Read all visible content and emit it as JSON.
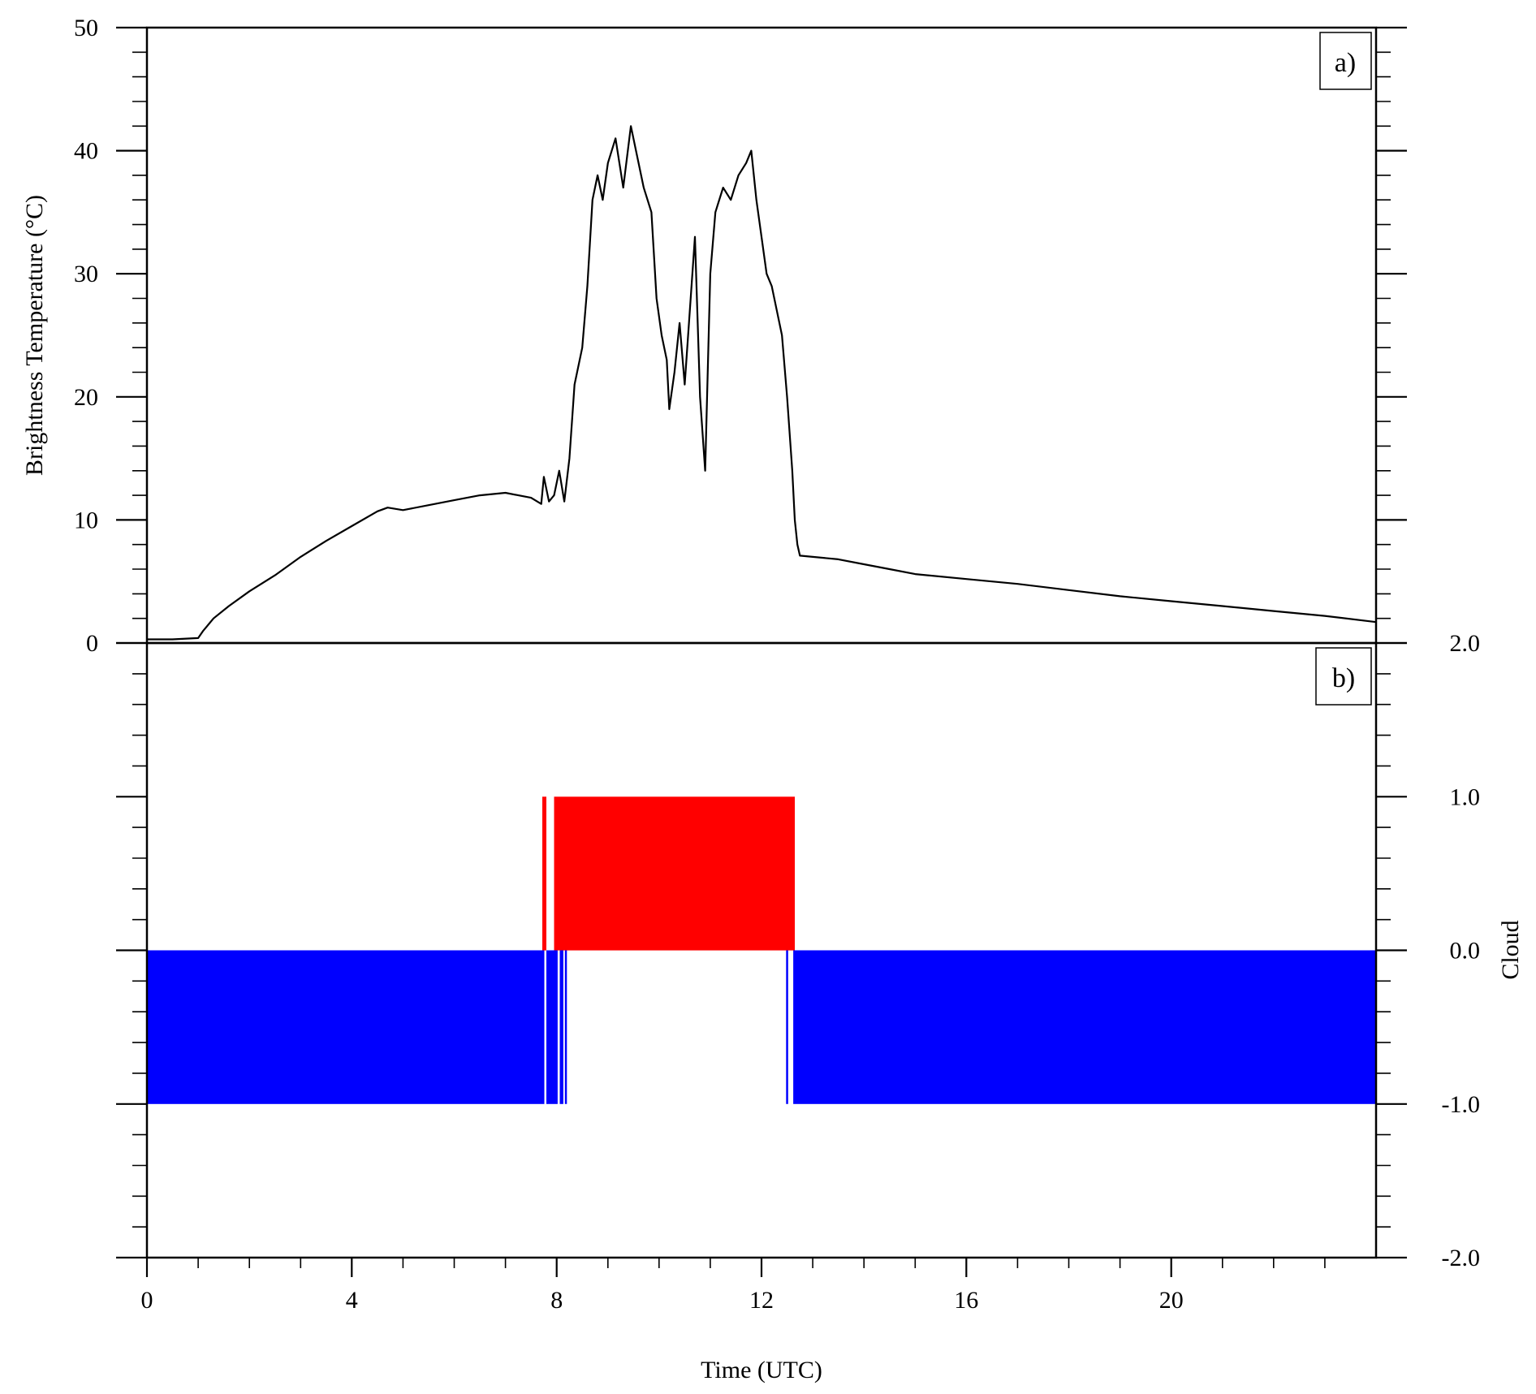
{
  "chart_data": [
    {
      "panel_label": "a)",
      "type": "line",
      "xlabel": "",
      "ylabel": "Brightness Temperature (°C)",
      "xlim": [
        0,
        24
      ],
      "ylim": [
        0,
        50
      ],
      "y_ticks": [
        "0",
        "10",
        "20",
        "30",
        "40",
        "50"
      ],
      "line_color": "#000000",
      "series": [
        {
          "name": "",
          "x": [
            0,
            0.5,
            1.0,
            1.1,
            1.3,
            1.6,
            2.0,
            2.5,
            3.0,
            3.5,
            4.0,
            4.5,
            4.7,
            5.0,
            5.5,
            6.0,
            6.5,
            7.0,
            7.5,
            7.7,
            7.75,
            7.85,
            7.95,
            8.05,
            8.15,
            8.25,
            8.35,
            8.5,
            8.6,
            8.7,
            8.8,
            8.9,
            9.0,
            9.15,
            9.3,
            9.45,
            9.55,
            9.7,
            9.85,
            9.95,
            10.05,
            10.15,
            10.2,
            10.3,
            10.4,
            10.5,
            10.6,
            10.7,
            10.8,
            10.9,
            11.0,
            11.1,
            11.25,
            11.4,
            11.55,
            11.7,
            11.8,
            11.9,
            12.0,
            12.1,
            12.2,
            12.3,
            12.4,
            12.5,
            12.6,
            12.65,
            12.7,
            12.75,
            13.0,
            13.5,
            14.0,
            14.5,
            15.0,
            16.0,
            17.0,
            18.0,
            19.0,
            20.0,
            21.0,
            22.0,
            23.0,
            24.0
          ],
          "values": [
            0.3,
            0.3,
            0.4,
            1.0,
            2.0,
            3.0,
            4.2,
            5.5,
            7.0,
            8.3,
            9.5,
            10.7,
            11.0,
            10.8,
            11.2,
            11.6,
            12.0,
            12.2,
            11.8,
            11.3,
            13.5,
            11.5,
            12.0,
            14.0,
            11.5,
            15.0,
            21.0,
            24.0,
            29.0,
            36.0,
            38.0,
            36.0,
            39.0,
            41.0,
            37.0,
            42.0,
            40.0,
            37.0,
            35.0,
            28.0,
            25.0,
            23.0,
            19.0,
            22.0,
            26.0,
            21.0,
            27.0,
            33.0,
            20.0,
            14.0,
            30.0,
            35.0,
            37.0,
            36.0,
            38.0,
            39.0,
            40.0,
            36.0,
            33.0,
            30.0,
            29.0,
            27.0,
            25.0,
            20.0,
            14.0,
            10.0,
            8.0,
            7.1,
            7.0,
            6.8,
            6.4,
            6.0,
            5.6,
            5.2,
            4.8,
            4.3,
            3.8,
            3.4,
            3.0,
            2.6,
            2.2,
            1.7
          ]
        }
      ]
    },
    {
      "panel_label": "b)",
      "type": "bar",
      "xlabel": "Time (UTC)",
      "ylabel": "Cloud",
      "xlim": [
        0,
        24
      ],
      "ylim": [
        -2.0,
        2.0
      ],
      "x_ticks": [
        "0",
        "4",
        "8",
        "12",
        "16",
        "20"
      ],
      "y_ticks": [
        "-2.0",
        "-1.0",
        "0.0",
        "1.0",
        "2.0"
      ],
      "colors": {
        "cloud": "#ff0000",
        "clear": "#0000ff"
      },
      "series": [
        {
          "name": "",
          "value": 1.0,
          "color": "#ff0000",
          "intervals": [
            [
              7.72,
              7.8
            ],
            [
              7.95,
              12.65
            ]
          ]
        },
        {
          "name": "",
          "value": -1.0,
          "color": "#0000ff",
          "intervals": [
            [
              0,
              7.76
            ],
            [
              7.8,
              8.02
            ],
            [
              8.06,
              8.13
            ],
            [
              8.16,
              8.2
            ],
            [
              12.48,
              12.52
            ],
            [
              12.62,
              24
            ]
          ]
        }
      ]
    }
  ]
}
